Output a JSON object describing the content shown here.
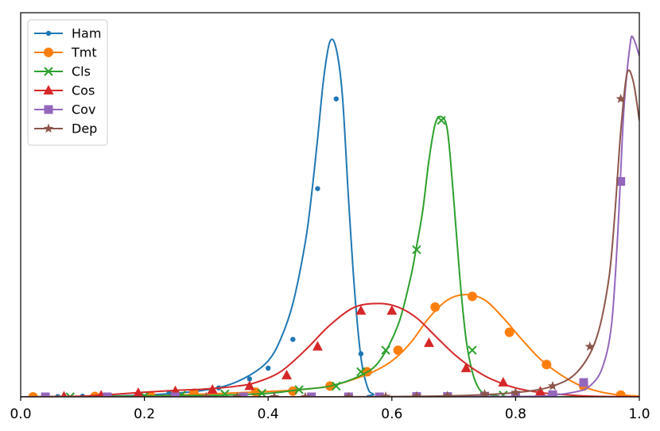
{
  "chart_data": {
    "type": "line",
    "title": "",
    "xlabel": "",
    "ylabel": "",
    "xlim": [
      0.0,
      1.0
    ],
    "ylim": [
      0.0,
      1.0
    ],
    "x_ticks": [
      "0.0",
      "0.2",
      "0.4",
      "0.6",
      "0.8",
      "1.0"
    ],
    "y_ticks": [],
    "grid": false,
    "legend_position": "top-left",
    "series": [
      {
        "name": "Ham",
        "color": "#1f77b4",
        "marker": "small-circle",
        "curve_x": [
          0.0,
          0.1,
          0.2,
          0.28,
          0.33,
          0.37,
          0.4,
          0.42,
          0.44,
          0.46,
          0.47,
          0.48,
          0.49,
          0.5,
          0.51,
          0.52,
          0.53,
          0.54,
          0.55,
          0.56,
          0.57,
          0.6,
          1.0
        ],
        "curve_y": [
          0.0,
          0.001,
          0.005,
          0.015,
          0.03,
          0.06,
          0.1,
          0.16,
          0.26,
          0.43,
          0.56,
          0.72,
          0.89,
          0.99,
          0.97,
          0.84,
          0.55,
          0.29,
          0.11,
          0.03,
          0.008,
          0.0,
          0.0
        ],
        "marker_x": [
          0.02,
          0.06,
          0.1,
          0.14,
          0.19,
          0.24,
          0.28,
          0.32,
          0.37,
          0.4,
          0.44,
          0.48,
          0.51,
          0.55
        ],
        "marker_y": [
          0.0,
          0.001,
          0.002,
          0.003,
          0.006,
          0.012,
          0.016,
          0.025,
          0.05,
          0.08,
          0.16,
          0.58,
          0.83,
          0.12
        ]
      },
      {
        "name": "Tmt",
        "color": "#ff7f0e",
        "marker": "circle",
        "curve_x": [
          0.0,
          0.2,
          0.3,
          0.4,
          0.45,
          0.5,
          0.54,
          0.57,
          0.6,
          0.63,
          0.66,
          0.69,
          0.72,
          0.75,
          0.78,
          0.81,
          0.84,
          0.87,
          0.9,
          0.93,
          0.96,
          1.0
        ],
        "curve_y": [
          0.0,
          0.002,
          0.008,
          0.015,
          0.02,
          0.03,
          0.05,
          0.07,
          0.1,
          0.15,
          0.22,
          0.27,
          0.285,
          0.27,
          0.22,
          0.16,
          0.105,
          0.065,
          0.035,
          0.017,
          0.007,
          0.002
        ],
        "marker_x": [
          0.02,
          0.12,
          0.21,
          0.28,
          0.38,
          0.44,
          0.5,
          0.56,
          0.61,
          0.67,
          0.73,
          0.79,
          0.85,
          0.91,
          0.97
        ],
        "marker_y": [
          0.0,
          0.001,
          0.003,
          0.01,
          0.013,
          0.016,
          0.03,
          0.07,
          0.13,
          0.25,
          0.28,
          0.18,
          0.09,
          0.03,
          0.005
        ]
      },
      {
        "name": "Cls",
        "color": "#2ca02c",
        "marker": "x",
        "curve_x": [
          0.0,
          0.3,
          0.4,
          0.45,
          0.5,
          0.55,
          0.58,
          0.61,
          0.63,
          0.64,
          0.65,
          0.66,
          0.67,
          0.68,
          0.69,
          0.7,
          0.71,
          0.72,
          0.73,
          0.74,
          0.75,
          0.77,
          0.8,
          1.0
        ],
        "curve_y": [
          0.0,
          0.004,
          0.01,
          0.02,
          0.03,
          0.06,
          0.1,
          0.2,
          0.33,
          0.42,
          0.52,
          0.66,
          0.76,
          0.78,
          0.74,
          0.55,
          0.33,
          0.16,
          0.07,
          0.025,
          0.01,
          0.003,
          0.0,
          0.0
        ],
        "marker_x": [
          0.08,
          0.2,
          0.26,
          0.33,
          0.39,
          0.45,
          0.51,
          0.55,
          0.59,
          0.64,
          0.68,
          0.73,
          0.78
        ],
        "marker_y": [
          0.0,
          0.002,
          0.005,
          0.008,
          0.01,
          0.02,
          0.03,
          0.07,
          0.13,
          0.41,
          0.77,
          0.13,
          0.005
        ]
      },
      {
        "name": "Cos",
        "color": "#d62728",
        "marker": "triangle",
        "curve_x": [
          0.0,
          0.1,
          0.15,
          0.2,
          0.25,
          0.3,
          0.35,
          0.38,
          0.42,
          0.46,
          0.5,
          0.54,
          0.58,
          0.61,
          0.64,
          0.67,
          0.7,
          0.73,
          0.76,
          0.8,
          0.84,
          0.88,
          0.92,
          1.0
        ],
        "curve_y": [
          0.0,
          0.002,
          0.007,
          0.013,
          0.018,
          0.022,
          0.03,
          0.04,
          0.07,
          0.13,
          0.2,
          0.25,
          0.26,
          0.25,
          0.22,
          0.17,
          0.12,
          0.08,
          0.05,
          0.025,
          0.012,
          0.006,
          0.002,
          0.0
        ],
        "marker_x": [
          0.07,
          0.13,
          0.19,
          0.25,
          0.31,
          0.37,
          0.43,
          0.48,
          0.55,
          0.6,
          0.66,
          0.72,
          0.78,
          0.84
        ],
        "marker_y": [
          0.001,
          0.004,
          0.011,
          0.016,
          0.02,
          0.03,
          0.06,
          0.14,
          0.24,
          0.24,
          0.15,
          0.08,
          0.04,
          0.015
        ]
      },
      {
        "name": "Cov",
        "color": "#9467bd",
        "marker": "square",
        "curve_x": [
          0.0,
          0.5,
          0.8,
          0.86,
          0.9,
          0.92,
          0.94,
          0.955,
          0.965,
          0.975,
          0.985,
          0.99,
          1.0
        ],
        "curve_y": [
          0.0,
          0.0,
          0.001,
          0.005,
          0.015,
          0.03,
          0.08,
          0.2,
          0.45,
          0.8,
          0.98,
          1.0,
          0.95
        ],
        "marker_x": [
          0.04,
          0.14,
          0.25,
          0.36,
          0.47,
          0.53,
          0.58,
          0.64,
          0.69,
          0.75,
          0.8,
          0.86,
          0.91,
          0.97
        ],
        "marker_y": [
          0.0,
          0.0,
          0.0,
          0.0,
          0.0,
          0.0,
          0.0,
          0.001,
          0.001,
          0.002,
          0.003,
          0.006,
          0.04,
          0.6
        ]
      },
      {
        "name": "Dep",
        "color": "#8c564b",
        "marker": "star",
        "curve_x": [
          0.0,
          0.5,
          0.7,
          0.8,
          0.86,
          0.9,
          0.93,
          0.95,
          0.96,
          0.97,
          0.98,
          0.99,
          1.0
        ],
        "curve_y": [
          0.0,
          0.0,
          0.003,
          0.012,
          0.03,
          0.07,
          0.16,
          0.32,
          0.5,
          0.74,
          0.9,
          0.88,
          0.77
        ],
        "marker_x": [
          0.3,
          0.35,
          0.41,
          0.46,
          0.53,
          0.59,
          0.64,
          0.69,
          0.75,
          0.8,
          0.86,
          0.92,
          0.97
        ],
        "marker_y": [
          0.0,
          0.0,
          0.0,
          0.0,
          0.0,
          0.001,
          0.002,
          0.003,
          0.008,
          0.012,
          0.03,
          0.14,
          0.83
        ]
      }
    ]
  }
}
